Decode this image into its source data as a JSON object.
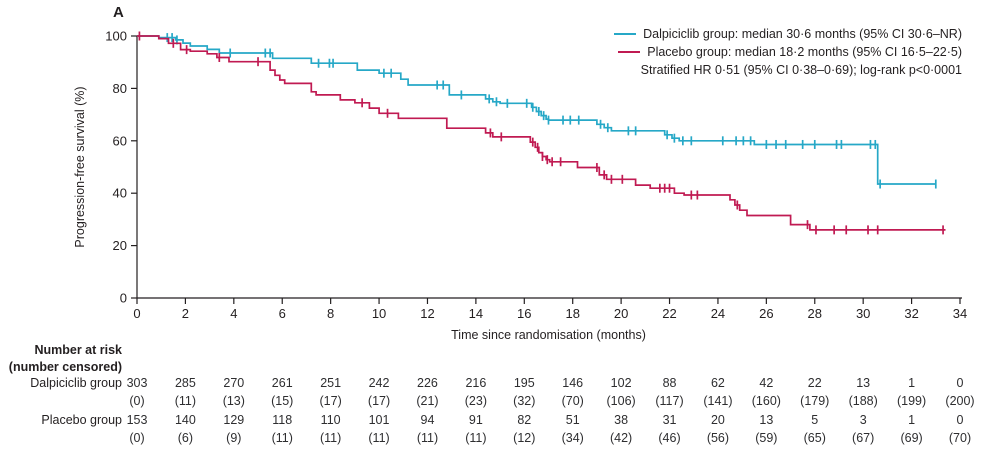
{
  "panel_label": "A",
  "colors": {
    "axis": "#231f20",
    "text": "#231f20"
  },
  "legend": {
    "entries": [
      {
        "label": "Dalpiciclib group: median 30·6 months (95% CI 30·6–NR)"
      },
      {
        "label": "Placebo group: median 18·2 months (95% CI 16·5–22·5)"
      }
    ],
    "note": "Stratified HR 0·51 (95% CI 0·38–0·69); log-rank p<0·0001"
  },
  "chart_data": {
    "type": "line",
    "subtype": "kaplan-meier-step",
    "title": "",
    "xlabel": "Time since randomisation (months)",
    "ylabel": "Progression-free survival (%)",
    "xlim": [
      0,
      34
    ],
    "ylim": [
      0,
      100
    ],
    "xticks": [
      0,
      2,
      4,
      6,
      8,
      10,
      12,
      14,
      16,
      18,
      20,
      22,
      24,
      26,
      28,
      30,
      32,
      34
    ],
    "yticks": [
      0,
      20,
      40,
      60,
      80,
      100
    ],
    "grid": false,
    "legend_position": "top-right",
    "series": [
      {
        "name": "Dalpiciclib group",
        "color": "#26a8c7",
        "steps": [
          [
            0,
            100
          ],
          [
            0.9,
            99.4
          ],
          [
            1.6,
            98.5
          ],
          [
            1.9,
            97.3
          ],
          [
            2.2,
            96.2
          ],
          [
            2.9,
            94.9
          ],
          [
            3.4,
            93.5
          ],
          [
            5.6,
            91.5
          ],
          [
            7.2,
            89.6
          ],
          [
            9.1,
            87.0
          ],
          [
            10.0,
            85.8
          ],
          [
            10.9,
            83.5
          ],
          [
            11.2,
            81.3
          ],
          [
            12.9,
            77.5
          ],
          [
            14.4,
            76.0
          ],
          [
            14.7,
            74.9
          ],
          [
            15.0,
            74.3
          ],
          [
            16.3,
            72.8
          ],
          [
            16.5,
            71.2
          ],
          [
            16.7,
            69.6
          ],
          [
            16.9,
            68.3
          ],
          [
            17.0,
            67.9
          ],
          [
            19.0,
            66.3
          ],
          [
            19.3,
            65.0
          ],
          [
            19.6,
            63.8
          ],
          [
            21.8,
            62.3
          ],
          [
            22.1,
            61.0
          ],
          [
            22.4,
            60.0
          ],
          [
            25.5,
            58.6
          ],
          [
            30.6,
            43.5
          ],
          [
            33.0,
            43.5
          ]
        ],
        "censor_months": [
          1.25,
          1.45,
          1.65,
          3.85,
          5.3,
          5.5,
          7.5,
          7.95,
          8.1,
          10.2,
          10.5,
          12.4,
          12.65,
          13.4,
          14.55,
          14.85,
          15.3,
          16.1,
          16.35,
          16.6,
          16.8,
          17.0,
          17.6,
          17.9,
          18.25,
          19.15,
          19.45,
          20.3,
          20.6,
          21.9,
          22.2,
          22.55,
          22.9,
          24.2,
          24.75,
          25.05,
          25.35,
          26.0,
          26.4,
          26.8,
          27.5,
          28.0,
          28.9,
          29.1,
          30.3,
          30.5,
          30.7,
          33.0
        ]
      },
      {
        "name": "Placebo group",
        "color": "#c01a52",
        "steps": [
          [
            0,
            100
          ],
          [
            0.9,
            99.0
          ],
          [
            1.3,
            97.2
          ],
          [
            1.8,
            94.8
          ],
          [
            2.2,
            94.2
          ],
          [
            2.9,
            93.2
          ],
          [
            3.3,
            91.8
          ],
          [
            3.8,
            90.2
          ],
          [
            5.5,
            87.0
          ],
          [
            5.7,
            85.0
          ],
          [
            5.9,
            83.2
          ],
          [
            6.1,
            81.9
          ],
          [
            7.2,
            78.7
          ],
          [
            7.4,
            77.5
          ],
          [
            8.4,
            75.6
          ],
          [
            9.0,
            74.5
          ],
          [
            9.6,
            72.5
          ],
          [
            10.0,
            70.5
          ],
          [
            10.8,
            68.6
          ],
          [
            12.8,
            64.8
          ],
          [
            14.4,
            63.0
          ],
          [
            14.7,
            61.5
          ],
          [
            16.25,
            59.5
          ],
          [
            16.45,
            57.5
          ],
          [
            16.6,
            55.5
          ],
          [
            16.75,
            54.0
          ],
          [
            16.9,
            52.8
          ],
          [
            17.05,
            52.0
          ],
          [
            18.2,
            49.8
          ],
          [
            19.1,
            47.0
          ],
          [
            19.4,
            45.3
          ],
          [
            20.6,
            43.1
          ],
          [
            21.2,
            41.9
          ],
          [
            22.2,
            40.0
          ],
          [
            22.6,
            39.3
          ],
          [
            24.5,
            37.5
          ],
          [
            24.7,
            35.5
          ],
          [
            24.9,
            33.5
          ],
          [
            25.2,
            31.5
          ],
          [
            27.0,
            28.0
          ],
          [
            27.8,
            26.0
          ],
          [
            33.4,
            26.0
          ]
        ],
        "censor_months": [
          0.1,
          1.5,
          2.05,
          3.4,
          5.0,
          9.3,
          10.35,
          14.6,
          15.05,
          16.35,
          16.55,
          16.75,
          16.95,
          17.15,
          17.5,
          19.0,
          19.3,
          19.6,
          20.05,
          21.6,
          21.8,
          22.0,
          22.9,
          23.15,
          24.8,
          27.7,
          28.05,
          28.8,
          29.3,
          30.2,
          30.6,
          33.3
        ]
      }
    ]
  },
  "risk_table": {
    "header_line1": "Number at risk",
    "header_line2": "(number censored)",
    "months": [
      0,
      2,
      4,
      6,
      8,
      10,
      12,
      14,
      16,
      18,
      20,
      22,
      24,
      26,
      28,
      30,
      32,
      34
    ],
    "rows": [
      {
        "label": "Dalpiciclib group",
        "at_risk": [
          303,
          285,
          270,
          261,
          251,
          242,
          226,
          216,
          195,
          146,
          102,
          88,
          62,
          42,
          22,
          13,
          1,
          0
        ],
        "censored": [
          0,
          11,
          13,
          15,
          17,
          17,
          21,
          23,
          32,
          70,
          106,
          117,
          141,
          160,
          179,
          188,
          199,
          200
        ]
      },
      {
        "label": "Placebo group",
        "at_risk": [
          153,
          140,
          129,
          118,
          110,
          101,
          94,
          91,
          82,
          51,
          38,
          31,
          20,
          13,
          5,
          3,
          1,
          0
        ],
        "censored": [
          0,
          6,
          9,
          11,
          11,
          11,
          11,
          11,
          12,
          34,
          42,
          46,
          56,
          59,
          65,
          67,
          69,
          70
        ]
      }
    ]
  }
}
